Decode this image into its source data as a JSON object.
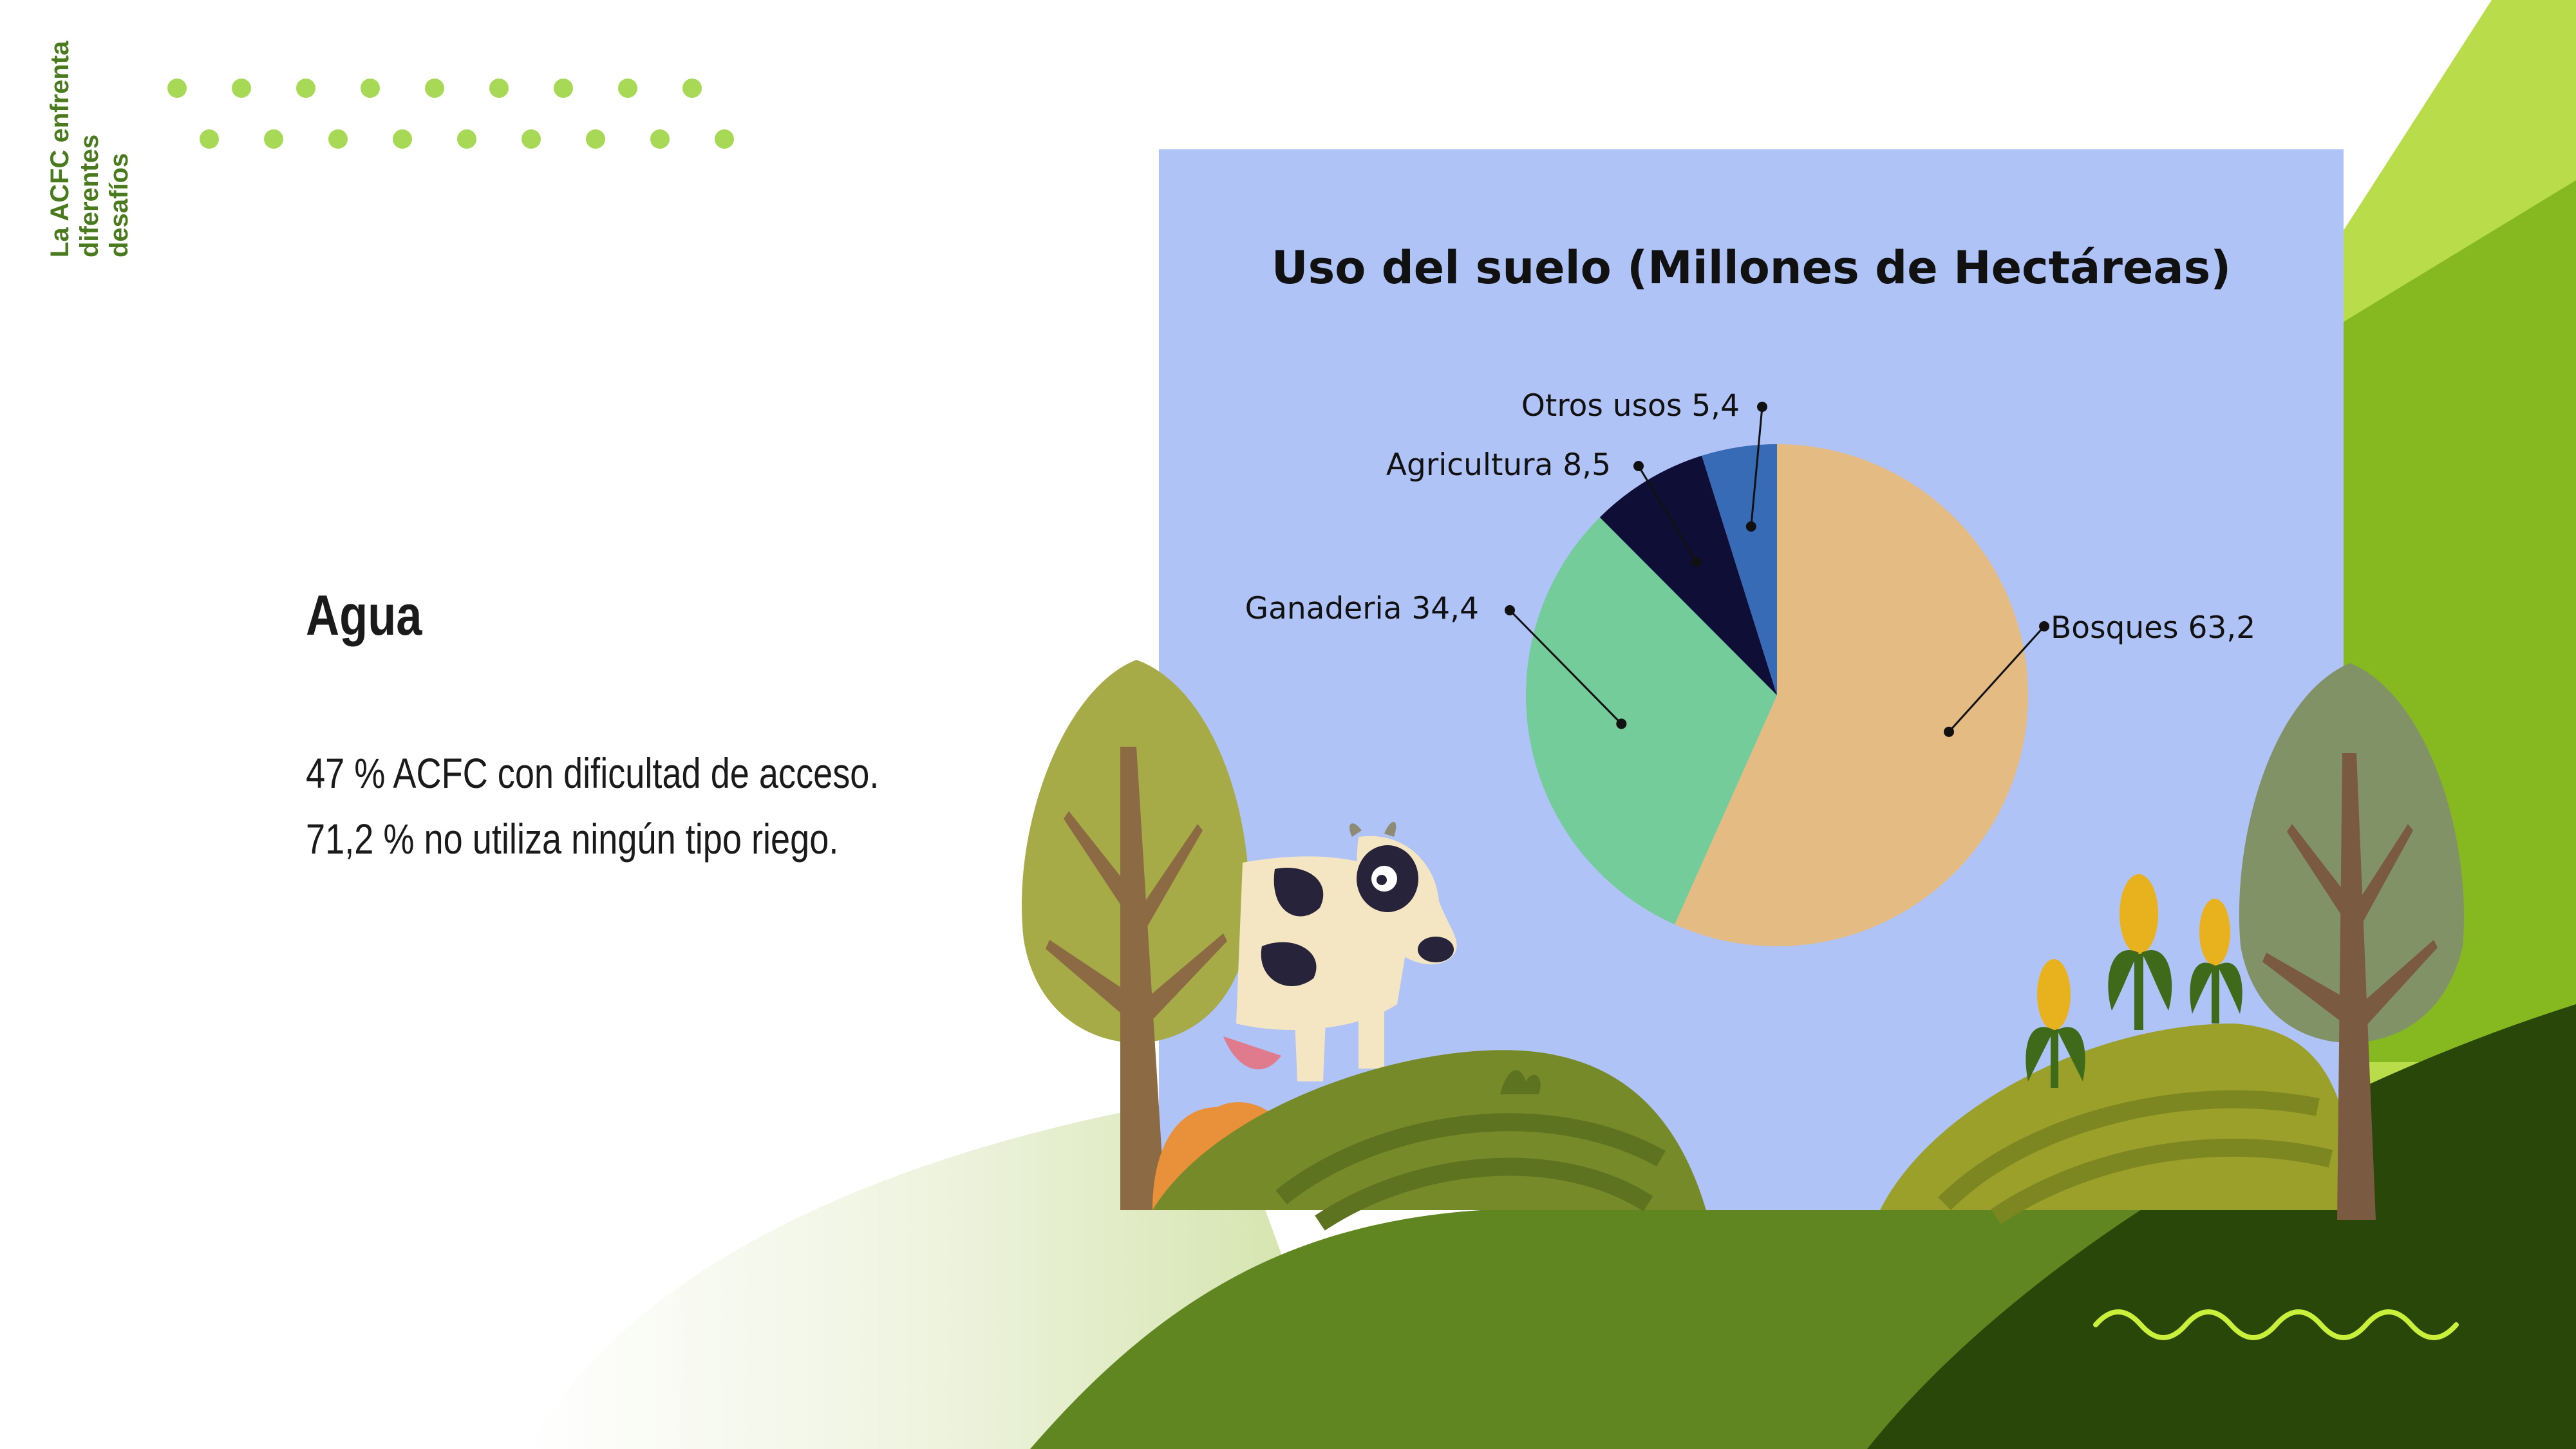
{
  "sidebar": {
    "title_line1": "La ACFC enfrenta",
    "title_line2": "diferentes desafíos"
  },
  "section": {
    "title": "Agua",
    "lines": [
      "47 % ACFC con dificultad de acceso.",
      "71,2 % no utiliza ningún tipo riego."
    ]
  },
  "chart_data": {
    "type": "pie",
    "title": "Uso del suelo (Millones de Hectáreas)",
    "slices": [
      {
        "name": "Bosques",
        "value": 63.2,
        "label": "Bosques 63,2",
        "color": "#e3bb83"
      },
      {
        "name": "Ganaderia",
        "value": 34.4,
        "label": "Ganaderia 34,4",
        "color": "#73cc99"
      },
      {
        "name": "Agricultura",
        "value": 8.5,
        "label": "Agricultura 8,5",
        "color": "#0e0e36"
      },
      {
        "name": "Otros usos",
        "value": 5.4,
        "label": "Otros usos 5,4",
        "color": "#386bb5"
      }
    ],
    "start_angle_deg": 0,
    "direction": "clockwise",
    "legend": "none",
    "panel_color": "#b0c3f7"
  },
  "colors": {
    "accent_green": "#a7d957",
    "dark_green": "#4a7a1e",
    "wave": "#c9f03a"
  },
  "icons": [
    "dot-grid-decoration",
    "cow-illustration",
    "tree-illustration",
    "corn-illustration",
    "wave-decoration"
  ]
}
